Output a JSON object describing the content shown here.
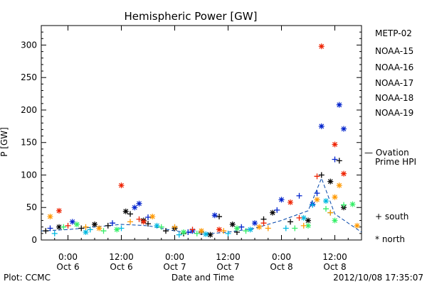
{
  "chart_data": {
    "type": "scatter",
    "title": "Hemispheric Power [GW]",
    "xlabel": "Date and Time",
    "ylabel": "P [GW]",
    "ylim": [
      0,
      330
    ],
    "y_ticks": [
      0,
      50,
      100,
      150,
      200,
      250,
      300
    ],
    "xlim": [
      "2012-10-05T18:00",
      "2012-10-08T18:00"
    ],
    "x_ticks": [
      {
        "at": "2012-10-06T00:00",
        "time": "0:00",
        "day": "Oct 6"
      },
      {
        "at": "2012-10-06T12:00",
        "time": "12:00",
        "day": "Oct 6"
      },
      {
        "at": "2012-10-07T00:00",
        "time": "0:00",
        "day": "Oct 7"
      },
      {
        "at": "2012-10-07T12:00",
        "time": "12:00",
        "day": "Oct 7"
      },
      {
        "at": "2012-10-08T00:00",
        "time": "0:00",
        "day": "Oct 8"
      },
      {
        "at": "2012-10-08T12:00",
        "time": "12:00",
        "day": "Oct 8"
      }
    ],
    "legend_position": "right",
    "series": [
      {
        "name": "METP-02",
        "color": "#000000",
        "south": [
          [
            "2012-10-05T19:00",
            14
          ],
          [
            "2012-10-06T03:00",
            18
          ],
          [
            "2012-10-06T09:00",
            22
          ],
          [
            "2012-10-06T14:00",
            40
          ],
          [
            "2012-10-06T18:00",
            25
          ],
          [
            "2012-10-06T22:00",
            14
          ],
          [
            "2012-10-07T02:00",
            10
          ],
          [
            "2012-10-07T06:00",
            12
          ],
          [
            "2012-10-07T10:00",
            36
          ],
          [
            "2012-10-07T14:00",
            12
          ],
          [
            "2012-10-07T20:00",
            32
          ],
          [
            "2012-10-08T02:00",
            28
          ],
          [
            "2012-10-08T09:00",
            100
          ],
          [
            "2012-10-08T13:00",
            122
          ]
        ],
        "north": [
          [
            "2012-10-05T22:00",
            20
          ],
          [
            "2012-10-06T06:00",
            24
          ],
          [
            "2012-10-06T13:00",
            44
          ],
          [
            "2012-10-06T17:00",
            30
          ],
          [
            "2012-10-07T00:00",
            18
          ],
          [
            "2012-10-07T08:00",
            8
          ],
          [
            "2012-10-07T13:00",
            24
          ],
          [
            "2012-10-07T22:00",
            42
          ],
          [
            "2012-10-08T06:00",
            30
          ],
          [
            "2012-10-08T11:00",
            90
          ],
          [
            "2012-10-08T14:00",
            50
          ]
        ]
      },
      {
        "name": "NOAA-15",
        "color": "#0022cc",
        "south": [
          [
            "2012-10-05T20:00",
            18
          ],
          [
            "2012-10-06T10:00",
            26
          ],
          [
            "2012-10-06T18:00",
            35
          ],
          [
            "2012-10-07T03:00",
            12
          ],
          [
            "2012-10-07T15:00",
            20
          ],
          [
            "2012-10-07T23:00",
            46
          ],
          [
            "2012-10-08T04:00",
            68
          ],
          [
            "2012-10-08T08:00",
            72
          ],
          [
            "2012-10-08T12:00",
            124
          ]
        ],
        "north": [
          [
            "2012-10-06T01:00",
            28
          ],
          [
            "2012-10-06T15:00",
            50
          ],
          [
            "2012-10-06T16:00",
            56
          ],
          [
            "2012-10-07T04:00",
            14
          ],
          [
            "2012-10-07T09:00",
            38
          ],
          [
            "2012-10-07T18:00",
            26
          ],
          [
            "2012-10-08T00:00",
            62
          ],
          [
            "2012-10-08T07:00",
            55
          ],
          [
            "2012-10-08T09:00",
            175
          ],
          [
            "2012-10-08T13:00",
            208
          ],
          [
            "2012-10-08T14:00",
            171
          ]
        ]
      },
      {
        "name": "NOAA-16",
        "color": "#00b8e0",
        "south": [
          [
            "2012-10-05T21:00",
            10
          ],
          [
            "2012-10-06T05:00",
            16
          ],
          [
            "2012-10-06T12:00",
            18
          ],
          [
            "2012-10-07T01:00",
            8
          ],
          [
            "2012-10-07T12:00",
            10
          ],
          [
            "2012-10-08T01:00",
            18
          ],
          [
            "2012-10-08T07:00",
            54
          ],
          [
            "2012-10-08T11:00",
            42
          ]
        ],
        "north": [
          [
            "2012-10-06T04:00",
            12
          ],
          [
            "2012-10-06T20:00",
            22
          ],
          [
            "2012-10-07T07:00",
            9
          ],
          [
            "2012-10-07T17:00",
            16
          ],
          [
            "2012-10-08T05:00",
            34
          ],
          [
            "2012-10-08T10:00",
            60
          ]
        ]
      },
      {
        "name": "NOAA-17",
        "color": "#33ee66",
        "south": [
          [
            "2012-10-05T23:00",
            20
          ],
          [
            "2012-10-06T08:00",
            14
          ],
          [
            "2012-10-06T21:00",
            20
          ],
          [
            "2012-10-07T05:00",
            10
          ],
          [
            "2012-10-07T16:00",
            14
          ],
          [
            "2012-10-08T03:00",
            18
          ],
          [
            "2012-10-08T10:00",
            48
          ],
          [
            "2012-10-08T14:00",
            54
          ]
        ],
        "north": [
          [
            "2012-10-06T02:00",
            24
          ],
          [
            "2012-10-06T11:00",
            16
          ],
          [
            "2012-10-07T02:00",
            12
          ],
          [
            "2012-10-07T14:00",
            18
          ],
          [
            "2012-10-08T06:00",
            22
          ],
          [
            "2012-10-08T12:00",
            30
          ],
          [
            "2012-10-08T16:00",
            55
          ]
        ]
      },
      {
        "name": "NOAA-18",
        "color": "#ff9900",
        "south": [
          [
            "2012-10-06T04:00",
            20
          ],
          [
            "2012-10-06T14:00",
            28
          ],
          [
            "2012-10-07T00:00",
            20
          ],
          [
            "2012-10-07T11:00",
            14
          ],
          [
            "2012-10-07T21:00",
            18
          ],
          [
            "2012-10-08T05:00",
            22
          ],
          [
            "2012-10-08T11:00",
            42
          ]
        ],
        "north": [
          [
            "2012-10-05T20:00",
            36
          ],
          [
            "2012-10-06T07:00",
            18
          ],
          [
            "2012-10-06T19:00",
            36
          ],
          [
            "2012-10-07T06:00",
            14
          ],
          [
            "2012-10-07T19:00",
            20
          ],
          [
            "2012-10-08T08:00",
            62
          ],
          [
            "2012-10-08T12:00",
            66
          ],
          [
            "2012-10-08T13:00",
            84
          ],
          [
            "2012-10-08T17:00",
            22
          ]
        ]
      },
      {
        "name": "NOAA-19",
        "color": "#ee2200",
        "south": [
          [
            "2012-10-06T00:00",
            22
          ],
          [
            "2012-10-06T16:00",
            32
          ],
          [
            "2012-10-07T04:00",
            16
          ],
          [
            "2012-10-07T20:00",
            26
          ],
          [
            "2012-10-08T04:00",
            34
          ],
          [
            "2012-10-08T08:00",
            98
          ]
        ],
        "north": [
          [
            "2012-10-05T22:00",
            45
          ],
          [
            "2012-10-06T12:00",
            84
          ],
          [
            "2012-10-06T17:00",
            28
          ],
          [
            "2012-10-07T10:00",
            16
          ],
          [
            "2012-10-08T02:00",
            58
          ],
          [
            "2012-10-08T09:00",
            298
          ],
          [
            "2012-10-08T12:00",
            147
          ],
          [
            "2012-10-08T14:00",
            102
          ]
        ]
      }
    ],
    "ovation": {
      "name": "Ovation Prime HPI",
      "label_line1": "— Ovation",
      "label_line2": "Prime HPI",
      "color": "#0044aa",
      "values": [
        [
          "2012-10-05T18:00",
          14
        ],
        [
          "2012-10-06T00:00",
          16
        ],
        [
          "2012-10-06T06:00",
          20
        ],
        [
          "2012-10-06T12:00",
          24
        ],
        [
          "2012-10-06T18:00",
          22
        ],
        [
          "2012-10-07T00:00",
          14
        ],
        [
          "2012-10-07T06:00",
          9
        ],
        [
          "2012-10-07T12:00",
          12
        ],
        [
          "2012-10-07T18:00",
          18
        ],
        [
          "2012-10-08T00:00",
          30
        ],
        [
          "2012-10-08T06:00",
          45
        ],
        [
          "2012-10-08T09:00",
          95
        ],
        [
          "2012-10-08T12:00",
          40
        ],
        [
          "2012-10-08T18:00",
          12
        ]
      ]
    },
    "marker_legend": {
      "south": "+ south",
      "north": "* north"
    }
  },
  "footer": {
    "credit": "Plot: CCMC",
    "timestamp": "2012/10/08 17:35:07"
  }
}
